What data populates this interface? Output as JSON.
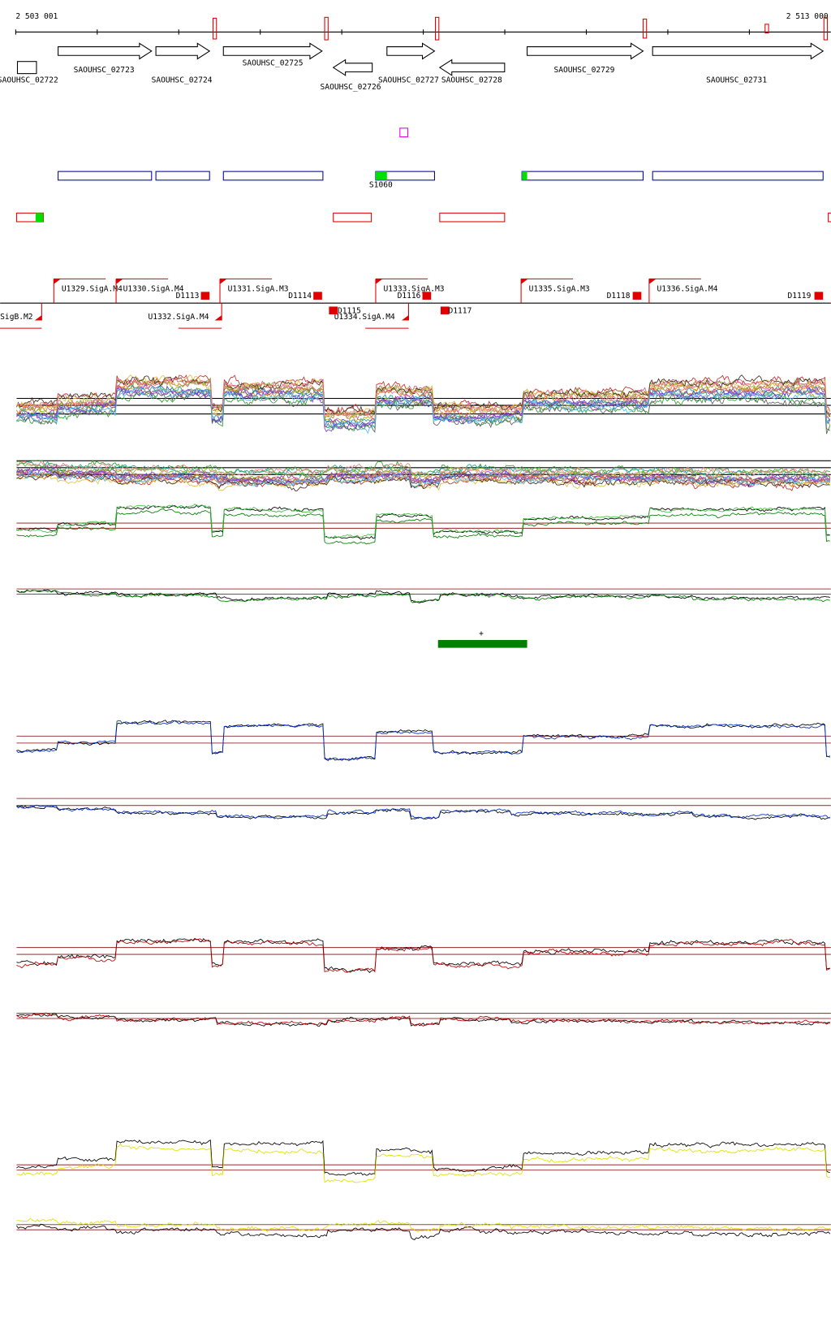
{
  "ruler": {
    "start": "2 503 001",
    "end": "2 513 000"
  },
  "genes": [
    "SAOUHSC_02722",
    "SAOUHSC_02723",
    "SAOUHSC_02724",
    "SAOUHSC_02725",
    "SAOUHSC_02726",
    "SAOUHSC_02727",
    "SAOUHSC_02728",
    "SAOUHSC_02729",
    "SAOUHSC_02731"
  ],
  "features": {
    "label": "S1060"
  },
  "promoters": [
    "U1329.SigA.M4",
    "U1330.SigA.M4",
    "U1331.SigA.M3",
    "U1333.SigA.M3",
    "U1335.SigA.M3",
    "U1336.SigA.M4",
    "SigB.M2",
    "U1332.SigA.M4",
    "U1334.SigA.M4"
  ],
  "terminators": [
    "D1113",
    "D1114",
    "D1115",
    "D1116",
    "D1117",
    "D1118",
    "D1119"
  ],
  "probe": {
    "label": "+"
  }
}
